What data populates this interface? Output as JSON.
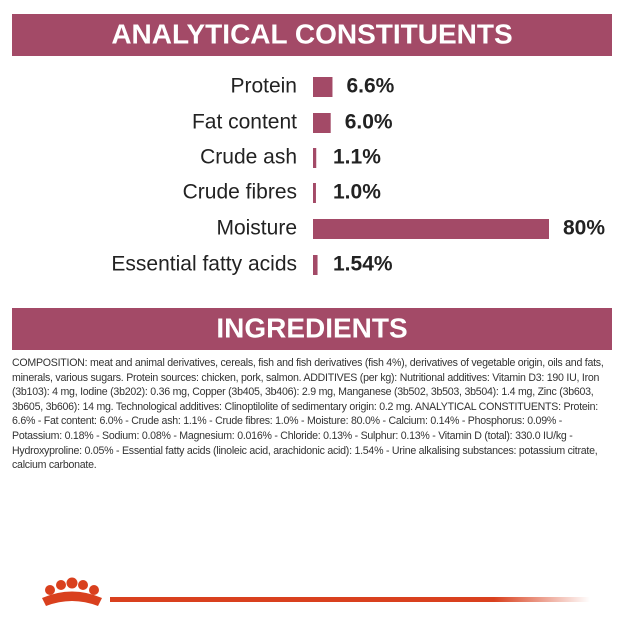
{
  "chart_data": {
    "type": "bar",
    "orientation": "horizontal",
    "title": "ANALYTICAL CONSTITUENTS",
    "categories": [
      "Protein",
      "Fat content",
      "Crude ash",
      "Crude fibres",
      "Moisture",
      "Essential fatty acids"
    ],
    "values": [
      6.6,
      6.0,
      1.1,
      1.0,
      80,
      1.54
    ],
    "value_labels": [
      "6.6%",
      "6.0%",
      "1.1%",
      "1.0%",
      "80%",
      "1.54%"
    ],
    "color": "#a34a67"
  },
  "ingredients": {
    "title": "INGREDIENTS",
    "text": "COMPOSITION: meat and animal derivatives, cereals, fish and fish derivatives (fish 4%), derivatives of vegetable origin, oils and fats, minerals, various sugars. Protein sources: chicken, pork, salmon. ADDITIVES (per kg): Nutritional additives: Vitamin D3: 190 IU, Iron (3b103): 4 mg, Iodine (3b202): 0.36 mg, Copper (3b405, 3b406): 2.9 mg, Manganese (3b502, 3b503, 3b504): 1.4 mg, Zinc (3b603, 3b605, 3b606): 14 mg. Technological additives: Clinoptilolite of sedimentary origin: 0.2 mg. ANALYTICAL CONSTITUENTS: Protein: 6.6% - Fat content: 6.0% - Crude ash: 1.1% - Crude fibres: 1.0% - Moisture: 80.0% - Calcium: 0.14% - Phosphorus: 0.09% - Potassium: 0.18% - Sodium: 0.08% - Magnesium: 0.016% - Chloride: 0.13% - Sulphur: 0.13% - Vitamin D (total): 330.0 IU/kg - Hydroxyproline: 0.05% - Essential fatty acids (linoleic acid, arachidonic acid): 1.54% - Urine alkalising substances: potassium citrate, calcium carbonate."
  }
}
